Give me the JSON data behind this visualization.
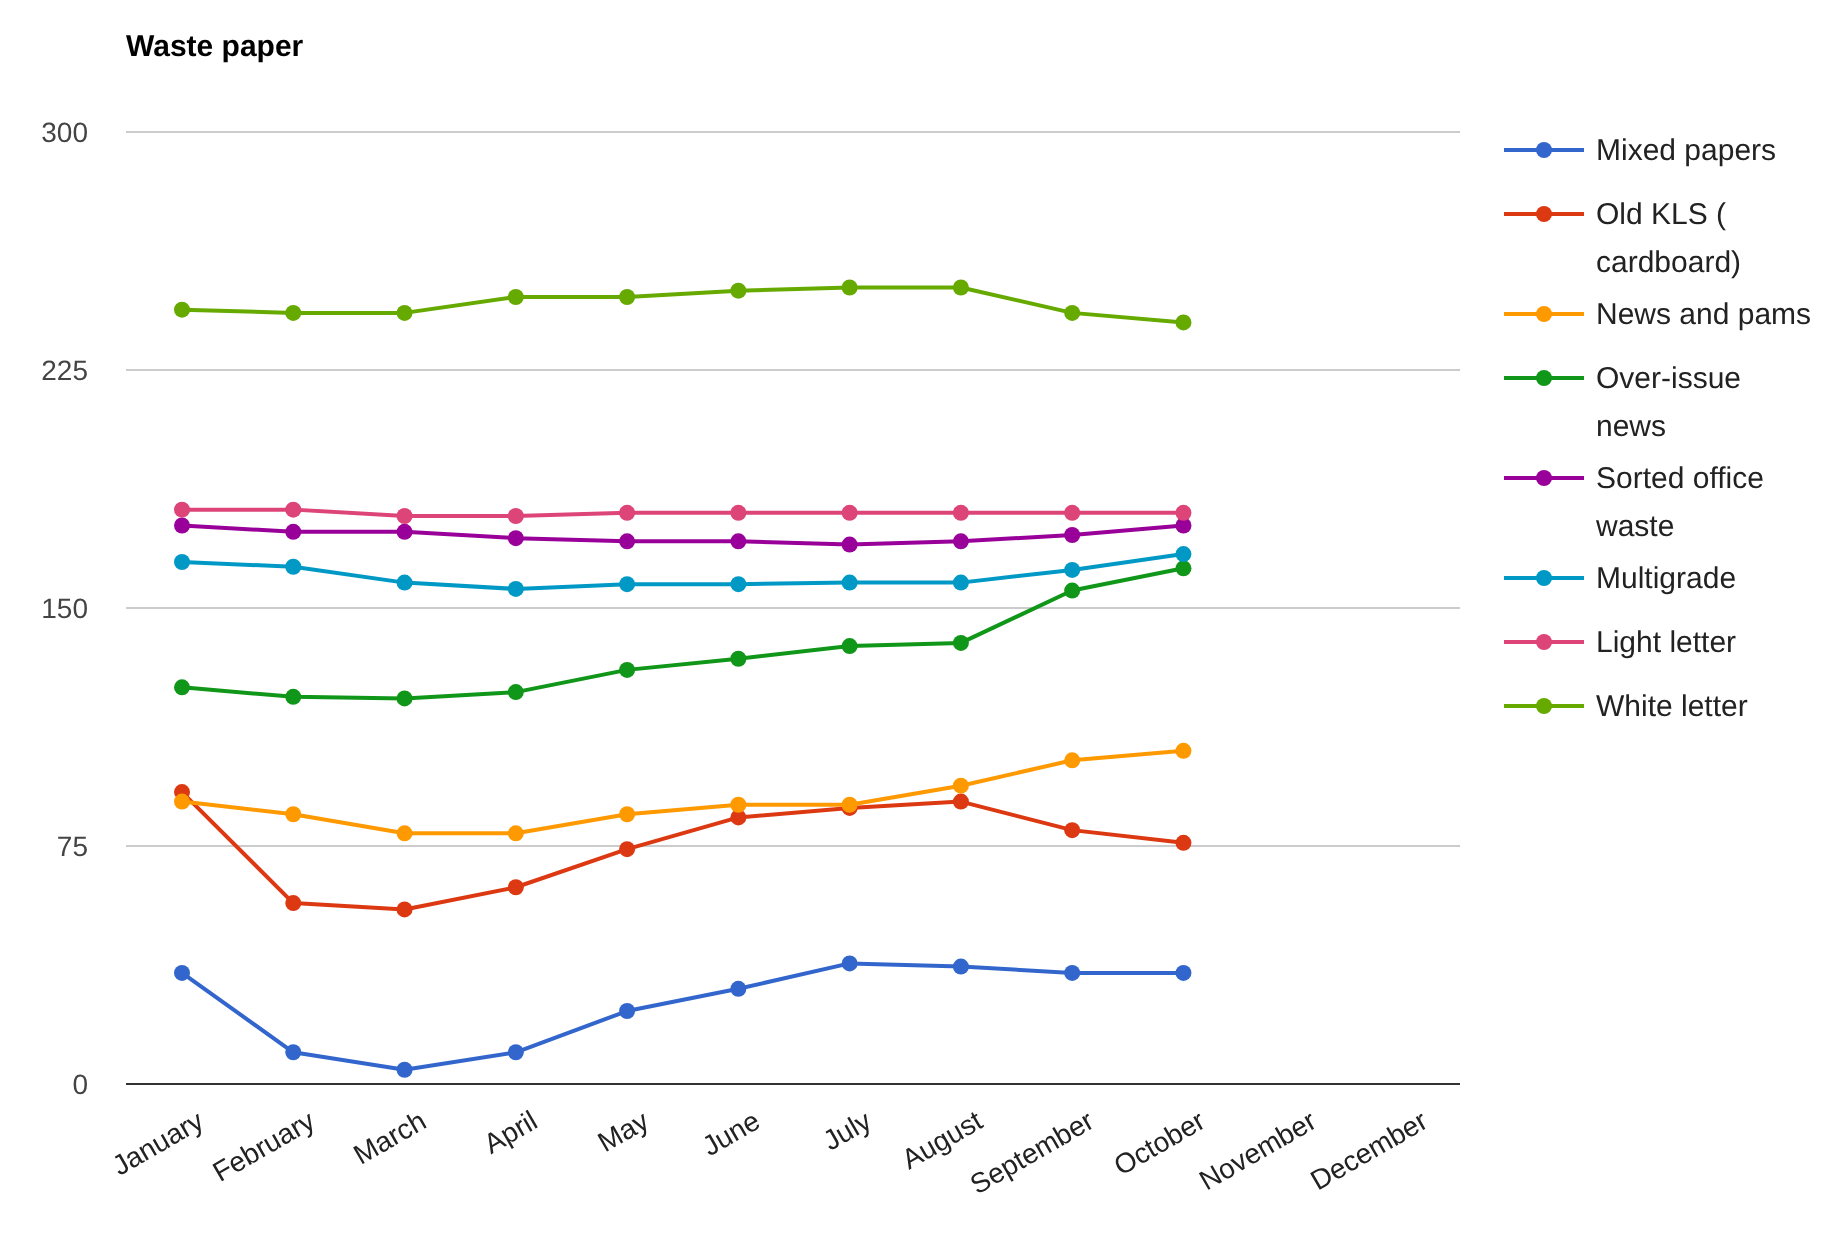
{
  "chart_data": {
    "type": "line",
    "title": "Waste paper",
    "categories": [
      "January",
      "February",
      "March",
      "April",
      "May",
      "June",
      "July",
      "August",
      "September",
      "October",
      "November",
      "December"
    ],
    "ylim": [
      0,
      300
    ],
    "yticks": [
      0,
      75,
      150,
      225,
      300
    ],
    "grid": "y",
    "legend": "right",
    "marker": "circle",
    "line_style": "solid",
    "series": [
      {
        "name": "Mixed papers",
        "color": "#3366cc",
        "values": [
          35,
          10,
          4.5,
          10,
          23,
          30,
          38,
          37,
          35,
          35,
          null,
          null
        ]
      },
      {
        "name": "Old KLS ( cardboard)",
        "color": "#dc3912",
        "values": [
          92,
          57,
          55,
          62,
          74,
          84,
          87,
          89,
          80,
          76,
          null,
          null
        ]
      },
      {
        "name": "News and pams",
        "color": "#ff9900",
        "values": [
          89,
          85,
          79,
          79,
          85,
          88,
          88,
          94,
          102,
          105,
          null,
          null
        ]
      },
      {
        "name": "Over-issue news",
        "color": "#109618",
        "values": [
          125,
          122,
          121.5,
          123.5,
          130.5,
          134,
          138,
          139,
          155.5,
          162.5,
          null,
          null
        ]
      },
      {
        "name": "Sorted office waste",
        "color": "#990099",
        "values": [
          176,
          174,
          174,
          172,
          171,
          171,
          170,
          171,
          173,
          176,
          null,
          null
        ]
      },
      {
        "name": "Multigrade",
        "color": "#0099c6",
        "values": [
          164.5,
          163,
          158,
          156,
          157.5,
          157.5,
          158,
          158,
          162,
          167,
          null,
          null
        ]
      },
      {
        "name": "Light letter",
        "color": "#dd4477",
        "values": [
          181,
          181,
          179,
          179,
          180,
          180,
          180,
          180,
          180,
          180,
          null,
          null
        ]
      },
      {
        "name": "White letter",
        "color": "#66aa00",
        "values": [
          244,
          243,
          243,
          248,
          248,
          250,
          251,
          251,
          243,
          240,
          null,
          null
        ]
      }
    ]
  }
}
